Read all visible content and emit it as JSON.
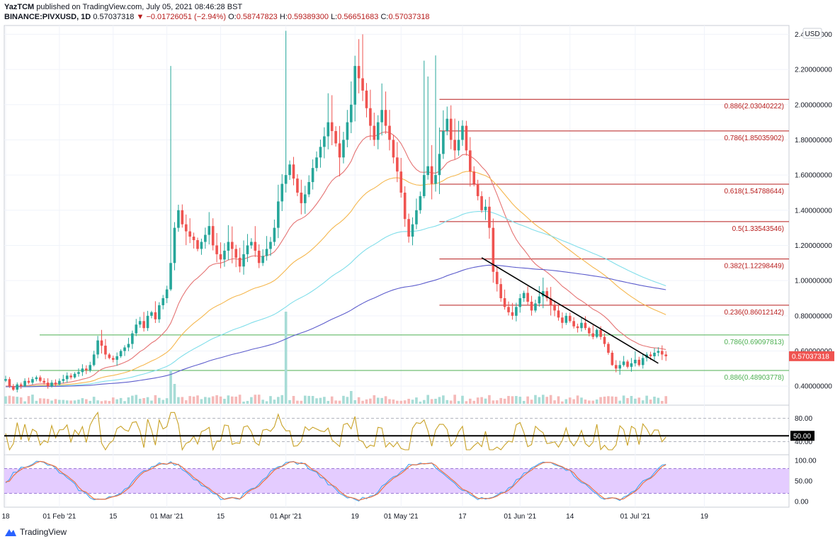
{
  "header": {
    "publisher": "YazTCM",
    "published_text": "published on TradingView.com, July 05, 2021 08:46:28 BST",
    "symbol": "BINANCE:PIVXUSD, 1D",
    "last": "0.57037318",
    "change": "−0.01726051 (−2.94%)",
    "o_label": "O:",
    "o_value": "0.58747823",
    "h_label": "H:",
    "h_value": "0.59389300",
    "l_label": "L:",
    "l_value": "0.56651683",
    "c_label": "C:",
    "c_value": "0.57037318"
  },
  "footer": {
    "brand": "TradingView"
  },
  "colors": {
    "up": "#26a69a",
    "down": "#ef5350",
    "fib_red": "#b71c1c",
    "fib_green": "#4caf50",
    "ema_red": "#e57373",
    "ema_orange": "#f5b74e",
    "ema_cyan": "#80deea",
    "ema_purple": "#5c5ccc",
    "rsi": "#c9a227",
    "stoch_blue": "#42a5f5",
    "stoch_orange": "#ef6c3a",
    "stoch_band": "#e4ccff"
  },
  "chart_data": {
    "type": "candlestick",
    "currency_label": "USD",
    "price_axis": {
      "ylim": [
        0.3,
        2.45
      ],
      "ticks": [
        "2.40000000",
        "2.20000000",
        "2.00000000",
        "1.80000000",
        "1.60000000",
        "1.40000000",
        "1.20000000",
        "1.00000000",
        "0.80000000",
        "0.60000000",
        "0.40000000"
      ],
      "tick_values": [
        2.4,
        2.2,
        2.0,
        1.8,
        1.6,
        1.4,
        1.2,
        1.0,
        0.8,
        0.6,
        0.4
      ]
    },
    "time_axis": {
      "labels": [
        "18",
        "01 Feb '21",
        "15",
        "01 Mar '21",
        "15",
        "01 Apr '21",
        "19",
        "01 May '21",
        "17",
        "01 Jun '21",
        "14",
        "01 Jul '21",
        "19"
      ],
      "label_days": [
        0,
        14,
        28,
        42,
        56,
        73,
        91,
        103,
        119,
        134,
        147,
        164,
        182
      ],
      "first_date": "2021-01-18"
    },
    "last_price_label": "0.57037318",
    "fibonacci_levels": [
      {
        "label": "0.886(2.03040222)",
        "value": 2.0304,
        "color": "red"
      },
      {
        "label": "0.786(1.85035902)",
        "value": 1.8504,
        "color": "red"
      },
      {
        "label": "0.618(1.54788644)",
        "value": 1.5479,
        "color": "red"
      },
      {
        "label": "0.5(1.33543546)",
        "value": 1.3354,
        "color": "red"
      },
      {
        "label": "0.382(1.12298449)",
        "value": 1.123,
        "color": "red"
      },
      {
        "label": "0.236(0.86012142)",
        "value": 0.8601,
        "color": "red"
      },
      {
        "label": "0.786(0.69097813)",
        "value": 0.691,
        "color": "green"
      },
      {
        "label": "0.886(0.48903778)",
        "value": 0.489,
        "color": "green"
      }
    ],
    "trendline": {
      "from": {
        "day": 124,
        "price": 1.13
      },
      "to": {
        "day": 170,
        "price": 0.53
      }
    },
    "closes": [
      0.44,
      0.4,
      0.38,
      0.41,
      0.4,
      0.43,
      0.42,
      0.44,
      0.45,
      0.43,
      0.42,
      0.4,
      0.42,
      0.41,
      0.43,
      0.44,
      0.46,
      0.45,
      0.47,
      0.48,
      0.5,
      0.49,
      0.52,
      0.58,
      0.66,
      0.63,
      0.58,
      0.56,
      0.55,
      0.57,
      0.6,
      0.62,
      0.64,
      0.7,
      0.75,
      0.77,
      0.73,
      0.8,
      0.82,
      0.78,
      0.86,
      0.9,
      0.95,
      1.1,
      1.3,
      1.4,
      1.32,
      1.28,
      1.25,
      1.23,
      1.18,
      1.22,
      1.26,
      1.31,
      1.2,
      1.15,
      1.12,
      1.17,
      1.22,
      1.18,
      1.13,
      1.08,
      1.15,
      1.2,
      1.22,
      1.17,
      1.1,
      1.14,
      1.18,
      1.22,
      1.3,
      1.45,
      1.55,
      1.6,
      1.66,
      1.58,
      1.5,
      1.44,
      1.49,
      1.56,
      1.64,
      1.7,
      1.76,
      1.82,
      1.9,
      1.85,
      1.78,
      1.7,
      1.8,
      1.9,
      2.0,
      2.22,
      2.15,
      2.08,
      1.98,
      1.88,
      1.8,
      1.9,
      1.97,
      1.88,
      1.8,
      1.7,
      1.62,
      1.5,
      1.35,
      1.25,
      1.32,
      1.4,
      1.48,
      1.6,
      1.65,
      1.55,
      1.6,
      1.72,
      1.85,
      1.92,
      1.8,
      1.74,
      1.8,
      1.88,
      1.74,
      1.62,
      1.55,
      1.48,
      1.4,
      1.42,
      1.3,
      1.05,
      0.98,
      0.9,
      0.85,
      0.82,
      0.8,
      0.85,
      0.9,
      0.93,
      0.88,
      0.83,
      0.87,
      0.91,
      0.94,
      0.9,
      0.86,
      0.83,
      0.79,
      0.76,
      0.8,
      0.77,
      0.74,
      0.73,
      0.76,
      0.73,
      0.7,
      0.68,
      0.72,
      0.68,
      0.64,
      0.59,
      0.52,
      0.5,
      0.52,
      0.54,
      0.51,
      0.53,
      0.55,
      0.52,
      0.56,
      0.58,
      0.57,
      0.59,
      0.6,
      0.58,
      0.57
    ],
    "ema_series": [
      {
        "color": "red",
        "period": 20
      },
      {
        "color": "orange",
        "period": 50
      },
      {
        "color": "cyan",
        "period": 100
      },
      {
        "color": "purple",
        "period": 200
      }
    ],
    "rsi": {
      "ticks": [
        "80.00",
        "40.00"
      ],
      "tick_values": [
        80,
        40
      ],
      "level_label": "50.00",
      "level": 50,
      "ylim": [
        20,
        100
      ]
    },
    "stoch_rsi": {
      "ticks": [
        "100.00",
        "50.00",
        "0.00"
      ],
      "tick_values": [
        100,
        50,
        0
      ],
      "band": [
        20,
        80
      ],
      "ylim": [
        -10,
        110
      ]
    }
  }
}
